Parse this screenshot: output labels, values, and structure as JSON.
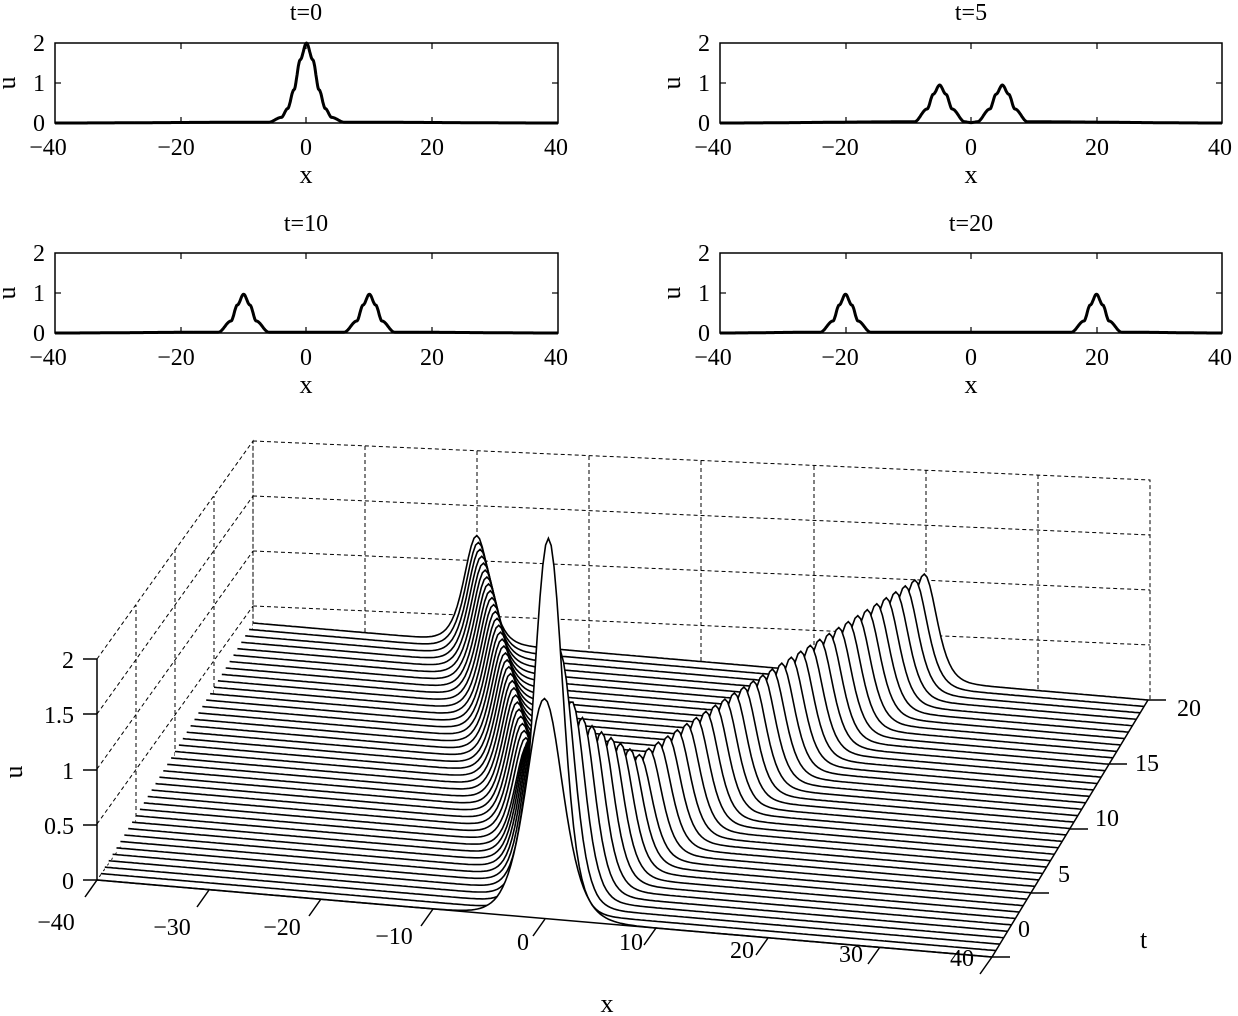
{
  "chart_data": [
    {
      "type": "line",
      "title": "t=0",
      "xlabel": "x",
      "ylabel": "u",
      "xlim": [
        -40,
        40
      ],
      "ylim": [
        0,
        2
      ],
      "xticks": [
        "−40",
        "−20",
        "0",
        "20",
        "40"
      ],
      "yticks": [
        "0",
        "1",
        "2"
      ],
      "series": [
        {
          "x": [
            -40,
            -6,
            -4,
            -3,
            -2,
            -1,
            0,
            1,
            2,
            3,
            4,
            6,
            40
          ],
          "y": [
            0,
            0.02,
            0.14,
            0.36,
            0.83,
            1.58,
            2.0,
            1.58,
            0.83,
            0.36,
            0.14,
            0.02,
            0
          ]
        }
      ]
    },
    {
      "type": "line",
      "title": "t=5",
      "xlabel": "x",
      "ylabel": "u",
      "xlim": [
        -40,
        40
      ],
      "ylim": [
        0,
        2
      ],
      "xticks": [
        "−40",
        "−20",
        "0",
        "20",
        "40"
      ],
      "yticks": [
        "0",
        "1",
        "2"
      ],
      "series": [
        {
          "x": [
            -40,
            -9,
            -7,
            -6,
            -5,
            -4,
            -3,
            -1,
            0,
            1,
            3,
            4,
            5,
            6,
            7,
            9,
            40
          ],
          "y": [
            0,
            0.03,
            0.35,
            0.72,
            0.95,
            0.72,
            0.35,
            0.03,
            0.01,
            0.03,
            0.35,
            0.72,
            0.95,
            0.72,
            0.35,
            0.03,
            0
          ]
        }
      ]
    },
    {
      "type": "line",
      "title": "t=10",
      "xlabel": "x",
      "ylabel": "u",
      "xlim": [
        -40,
        40
      ],
      "ylim": [
        0,
        2
      ],
      "xticks": [
        "−40",
        "−20",
        "0",
        "20",
        "40"
      ],
      "yticks": [
        "0",
        "1",
        "2"
      ],
      "series": [
        {
          "x": [
            -40,
            -14,
            -12,
            -11,
            -10,
            -9,
            -8,
            -6,
            6,
            8,
            9,
            10,
            11,
            12,
            14,
            40
          ],
          "y": [
            0,
            0.02,
            0.3,
            0.7,
            0.97,
            0.7,
            0.3,
            0.02,
            0.02,
            0.3,
            0.7,
            0.97,
            0.7,
            0.3,
            0.02,
            0
          ]
        }
      ]
    },
    {
      "type": "line",
      "title": "t=20",
      "xlabel": "x",
      "ylabel": "u",
      "xlim": [
        -40,
        40
      ],
      "ylim": [
        0,
        2
      ],
      "xticks": [
        "−40",
        "−20",
        "0",
        "20",
        "40"
      ],
      "yticks": [
        "0",
        "1",
        "2"
      ],
      "series": [
        {
          "x": [
            -40,
            -24,
            -22,
            -21,
            -20,
            -19,
            -18,
            -16,
            16,
            18,
            19,
            20,
            21,
            22,
            24,
            40
          ],
          "y": [
            0,
            0.02,
            0.3,
            0.7,
            0.97,
            0.7,
            0.3,
            0.02,
            0.02,
            0.3,
            0.7,
            0.97,
            0.7,
            0.3,
            0.02,
            0
          ]
        }
      ]
    },
    {
      "type": "surface",
      "xlabel": "x",
      "ylabel": "t",
      "zlabel": "u",
      "xlim": [
        -40,
        40
      ],
      "tlim": [
        0,
        20
      ],
      "zlim": [
        0,
        2
      ],
      "xticks": [
        "−40",
        "−30",
        "−20",
        "−10",
        "0",
        "10",
        "20",
        "30",
        "40"
      ],
      "tticks": [
        "0",
        "5",
        "10",
        "15",
        "20"
      ],
      "zticks": [
        "0",
        "0.5",
        "1",
        "1.5",
        "2"
      ],
      "t_values": [
        0,
        0.5,
        1,
        1.5,
        2,
        2.5,
        3,
        3.5,
        4,
        4.5,
        5,
        5.5,
        6,
        6.5,
        7,
        7.5,
        8,
        8.5,
        9,
        9.5,
        10,
        10.5,
        11,
        11.5,
        12,
        12.5,
        13,
        13.5,
        14,
        14.5,
        15,
        15.5,
        16,
        16.5,
        17,
        17.5,
        18,
        18.5,
        19,
        19.5,
        20
      ],
      "t_peak_positions": {
        "t": [
          0,
          5,
          10,
          20
        ],
        "left": [
          0,
          -5,
          -10,
          -20
        ],
        "right": [
          0,
          5,
          10,
          20
        ]
      },
      "t_peak_heights": {
        "t": [
          0,
          5,
          10,
          20
        ],
        "u": [
          2.0,
          0.95,
          0.97,
          0.97
        ]
      }
    }
  ]
}
